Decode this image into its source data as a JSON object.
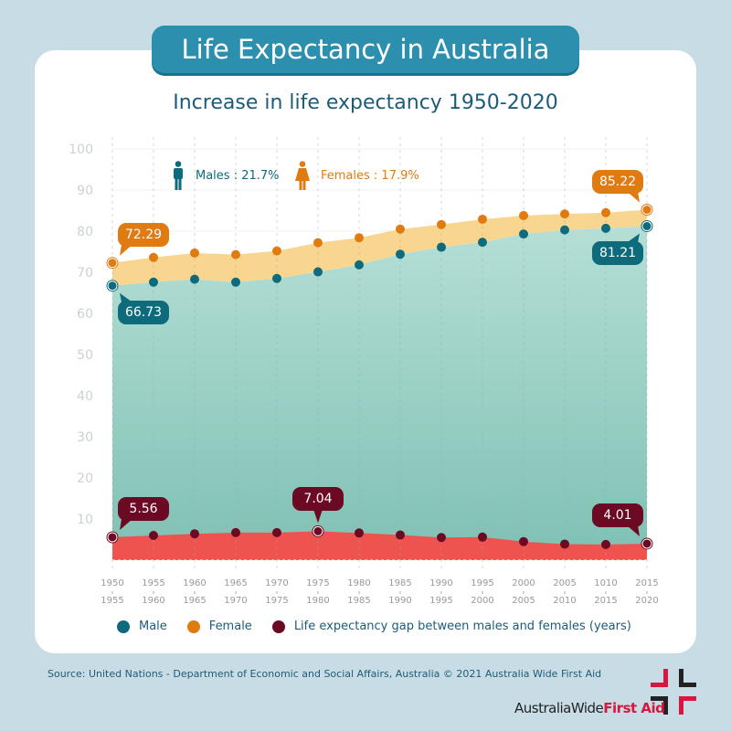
{
  "banner_title": "Life Expectancy in Australia",
  "subtitle": "Increase in life expectancy 1950-2020",
  "gender_stats": {
    "male": "Males : 21.7%",
    "female": "Females : 17.9%"
  },
  "colors": {
    "male": "#0e6b7c",
    "female": "#e07b12",
    "gap": "#6b0a22",
    "male_area": "#9fd3c9",
    "female_band": "#f9d68f",
    "gap_area": "#ef5350"
  },
  "chart_data": {
    "type": "area",
    "categories": [
      [
        "1950",
        "1955"
      ],
      [
        "1955",
        "1960"
      ],
      [
        "1960",
        "1965"
      ],
      [
        "1965",
        "1970"
      ],
      [
        "1970",
        "1975"
      ],
      [
        "1975",
        "1980"
      ],
      [
        "1980",
        "1985"
      ],
      [
        "1985",
        "1990"
      ],
      [
        "1990",
        "1995"
      ],
      [
        "1995",
        "2000"
      ],
      [
        "2000",
        "2005"
      ],
      [
        "2005",
        "2010"
      ],
      [
        "1010",
        "2015"
      ],
      [
        "2015",
        "2020"
      ]
    ],
    "yticks": [
      "10",
      "20",
      "30",
      "40",
      "50",
      "60",
      "70",
      "80",
      "90",
      "100"
    ],
    "ylim": [
      0,
      100
    ],
    "grid": true,
    "series": [
      {
        "name": "Male",
        "values": [
          66.73,
          67.6,
          68.3,
          67.6,
          68.5,
          70.1,
          71.8,
          74.4,
          76.1,
          77.3,
          79.3,
          80.3,
          80.7,
          81.21
        ]
      },
      {
        "name": "Female",
        "values": [
          72.29,
          73.6,
          74.7,
          74.3,
          75.2,
          77.2,
          78.4,
          80.5,
          81.6,
          82.9,
          83.8,
          84.2,
          84.5,
          85.22
        ]
      },
      {
        "name": "Life expectancy gap between males and females (years)",
        "values": [
          5.56,
          6.0,
          6.4,
          6.7,
          6.7,
          7.04,
          6.6,
          6.1,
          5.5,
          5.6,
          4.5,
          3.9,
          3.8,
          4.01
        ]
      }
    ],
    "annotations": [
      {
        "series": 1,
        "index": 0,
        "text": "72.29"
      },
      {
        "series": 0,
        "index": 0,
        "text": "66.73"
      },
      {
        "series": 1,
        "index": 13,
        "text": "85.22"
      },
      {
        "series": 0,
        "index": 13,
        "text": "81.21"
      },
      {
        "series": 2,
        "index": 0,
        "text": "5.56"
      },
      {
        "series": 2,
        "index": 5,
        "text": "7.04"
      },
      {
        "series": 2,
        "index": 13,
        "text": "4.01"
      }
    ],
    "legend": "bottom"
  },
  "legend": {
    "male": "Male",
    "female": "Female",
    "gap": "Life expectancy gap between males and females (years)"
  },
  "source": "Source: United Nations - Department of Economic and Social Affairs, Australia © 2021 Australia Wide First Aid",
  "logo": {
    "part1": "AustraliaWide",
    "part2": "First Aid"
  }
}
